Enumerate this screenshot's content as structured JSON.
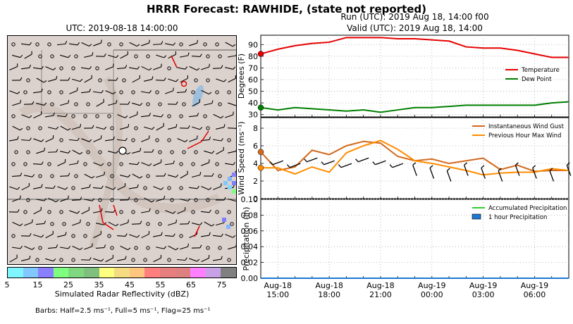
{
  "title": "HRRR Forecast: RAWHIDE, (state not reported)",
  "map": {
    "title": "UTC: 2019-08-18 14:00:00",
    "colorbar": {
      "label": "Simulated Radar Reflectivity (dBZ)",
      "ticks": [
        "5",
        "15",
        "25",
        "35",
        "45",
        "55",
        "65",
        "75"
      ],
      "colors": [
        "#7ff5ff",
        "#80c8ff",
        "#8a80ff",
        "#7fff7f",
        "#7fd87f",
        "#7fc07f",
        "#ffff7f",
        "#f5dc80",
        "#ffc67f",
        "#ff7f7f",
        "#e77f7f",
        "#df8080",
        "#ff7fff",
        "#c8a0e6",
        "#808080"
      ]
    },
    "barb_note": "Barbs: Half=2.5 ms⁻¹, Full=5 ms⁻¹, Flag=25 ms⁻¹"
  },
  "run_label": "Run (UTC): 2019 Aug 18, 14:00 f00",
  "valid_label": "Valid (UTC): 2019 Aug 18, 14:00",
  "chart_data": [
    {
      "type": "line",
      "ylabel": "Degrees (F)",
      "ylim": [
        28,
        98
      ],
      "yticks": [
        30,
        40,
        50,
        60,
        70,
        80,
        90
      ],
      "x": [
        "2019-08-18 14:00",
        "2019-08-18 15:00",
        "2019-08-18 16:00",
        "2019-08-18 17:00",
        "2019-08-18 18:00",
        "2019-08-18 19:00",
        "2019-08-18 20:00",
        "2019-08-18 21:00",
        "2019-08-18 22:00",
        "2019-08-18 23:00",
        "2019-08-19 00:00",
        "2019-08-19 01:00",
        "2019-08-19 02:00",
        "2019-08-19 03:00",
        "2019-08-19 04:00",
        "2019-08-19 05:00",
        "2019-08-19 06:00",
        "2019-08-19 07:00",
        "2019-08-19 08:00"
      ],
      "series": [
        {
          "name": "Temperature",
          "color": "#e60000",
          "values": [
            82,
            86,
            89,
            91,
            92,
            96,
            96,
            96,
            95,
            95,
            94,
            93,
            88,
            87,
            87,
            85,
            82,
            79,
            79
          ]
        },
        {
          "name": "Dew Point",
          "color": "#007f00",
          "values": [
            36,
            34,
            36,
            35,
            34,
            33,
            34,
            32,
            34,
            36,
            36,
            37,
            38,
            38,
            38,
            38,
            38,
            40,
            41
          ]
        }
      ],
      "legend": "center-right",
      "grid": true
    },
    {
      "type": "line",
      "ylabel": "Wind Speed (ms⁻¹)",
      "ylim": [
        0,
        9.2
      ],
      "yticks": [
        0,
        2,
        4,
        6,
        8
      ],
      "x": [
        "2019-08-18 14:00",
        "2019-08-18 15:00",
        "2019-08-18 16:00",
        "2019-08-18 17:00",
        "2019-08-18 18:00",
        "2019-08-18 19:00",
        "2019-08-18 20:00",
        "2019-08-18 21:00",
        "2019-08-18 22:00",
        "2019-08-18 23:00",
        "2019-08-19 00:00",
        "2019-08-19 01:00",
        "2019-08-19 02:00",
        "2019-08-19 03:00",
        "2019-08-19 04:00",
        "2019-08-19 05:00",
        "2019-08-19 06:00",
        "2019-08-19 07:00",
        "2019-08-19 08:00"
      ],
      "series": [
        {
          "name": "Instantaneous Wind Gust",
          "color": "#d2691e",
          "values": [
            5.3,
            3.2,
            3.6,
            5.5,
            5.0,
            6.0,
            6.5,
            6.3,
            4.8,
            4.3,
            4.5,
            4.0,
            4.3,
            4.6,
            3.3,
            3.8,
            3.1,
            3.2,
            3.2
          ]
        },
        {
          "name": "Previous Hour Max Wind",
          "color": "#ff8c00",
          "values": [
            3.5,
            3.5,
            2.8,
            3.6,
            3.0,
            5.2,
            6.0,
            6.6,
            5.6,
            4.3,
            4.0,
            3.6,
            3.2,
            2.7,
            2.9,
            3.0,
            3.0,
            3.4,
            3.2
          ]
        }
      ],
      "legend": "top-right",
      "grid": true
    },
    {
      "type": "line",
      "ylabel": "Precipitation (in)",
      "ylim": [
        0,
        0.1
      ],
      "yticks": [
        "0.00",
        "0.02",
        "0.04",
        "0.06",
        "0.08",
        "0.10"
      ],
      "x": [
        "2019-08-18 14:00",
        "2019-08-19 08:00"
      ],
      "xtick_labels": [
        [
          "Aug-18",
          "15:00"
        ],
        [
          "Aug-18",
          "18:00"
        ],
        [
          "Aug-18",
          "21:00"
        ],
        [
          "Aug-19",
          "00:00"
        ],
        [
          "Aug-19",
          "03:00"
        ],
        [
          "Aug-19",
          "06:00"
        ]
      ],
      "series": [
        {
          "name": "Accumulated Precipitation",
          "color": "#32cd32",
          "values": [
            0,
            0
          ]
        },
        {
          "name": "1 hour Precipitation",
          "color": "#1e78d2",
          "values": [
            0,
            0
          ]
        }
      ],
      "legend": "top-right",
      "grid": true
    }
  ]
}
